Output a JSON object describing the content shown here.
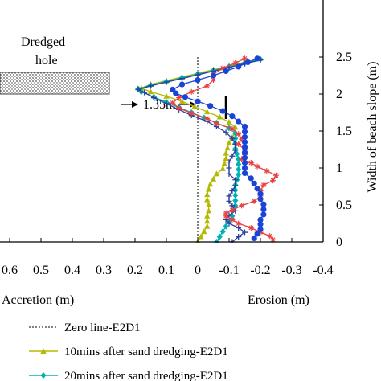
{
  "chart_data": {
    "type": "line",
    "xlabel_left": "Accretion (m)",
    "xlabel_right": "Erosion (m)",
    "ylabel": "Width of beach slope (m)",
    "xlim": [
      0.6,
      -0.4
    ],
    "ylim": [
      0,
      2.5
    ],
    "x_ticks": [
      "0.6",
      "0.5",
      "0.4",
      "0.3",
      "0.2",
      "0.1",
      "0",
      "-0.1",
      "-0.2",
      "-0.3",
      "-0.4"
    ],
    "x_tick_values": [
      0.6,
      0.5,
      0.4,
      0.3,
      0.2,
      0.1,
      0,
      -0.1,
      -0.2,
      -0.3,
      -0.4
    ],
    "y_ticks": [
      "0",
      "0.5",
      "1",
      "1.5",
      "2",
      "2.5"
    ],
    "y_tick_values": [
      0,
      0.5,
      1,
      1.5,
      2,
      2.5
    ],
    "annotations": {
      "hole_label_line1": "Dredged",
      "hole_label_line2": "hole",
      "distance_label": "1.35m"
    },
    "series": [
      {
        "name": "Zero line-E2D1",
        "color": "#000000",
        "style": "dotted",
        "marker": "none",
        "points": [
          [
            0,
            0
          ],
          [
            0,
            2.5
          ]
        ]
      },
      {
        "name": "10mins after sand dredging-E2D1",
        "color": "#b5b800",
        "style": "solid",
        "marker": "triangle",
        "points": [
          [
            0.0,
            0.0
          ],
          [
            -0.01,
            0.07
          ],
          [
            -0.02,
            0.14
          ],
          [
            -0.03,
            0.21
          ],
          [
            -0.03,
            0.28
          ],
          [
            -0.03,
            0.35
          ],
          [
            -0.035,
            0.42
          ],
          [
            -0.035,
            0.5
          ],
          [
            -0.03,
            0.57
          ],
          [
            -0.03,
            0.64
          ],
          [
            -0.035,
            0.71
          ],
          [
            -0.04,
            0.78
          ],
          [
            -0.05,
            0.85
          ],
          [
            -0.06,
            0.92
          ],
          [
            -0.08,
            0.99
          ],
          [
            -0.085,
            1.06
          ],
          [
            -0.09,
            1.13
          ],
          [
            -0.09,
            1.2
          ],
          [
            -0.095,
            1.27
          ],
          [
            -0.1,
            1.34
          ],
          [
            -0.11,
            1.41
          ],
          [
            -0.12,
            1.48
          ],
          [
            -0.12,
            1.55
          ],
          [
            -0.1,
            1.62
          ],
          [
            -0.07,
            1.69
          ],
          [
            -0.03,
            1.76
          ],
          [
            0.01,
            1.83
          ],
          [
            0.05,
            1.9
          ],
          [
            0.1,
            1.97
          ],
          [
            0.15,
            2.03
          ],
          [
            0.18,
            2.08
          ],
          [
            0.15,
            2.13
          ],
          [
            0.1,
            2.18
          ],
          [
            0.05,
            2.23
          ],
          [
            0.0,
            2.28
          ],
          [
            -0.05,
            2.33
          ],
          [
            -0.1,
            2.38
          ],
          [
            -0.15,
            2.43
          ]
        ]
      },
      {
        "name": "20mins after sand dredging-E2D1",
        "color": "#00b3b3",
        "style": "solid",
        "marker": "diamond",
        "points": [
          [
            -0.06,
            0.0
          ],
          [
            -0.07,
            0.07
          ],
          [
            -0.08,
            0.14
          ],
          [
            -0.09,
            0.21
          ],
          [
            -0.1,
            0.28
          ],
          [
            -0.11,
            0.35
          ],
          [
            -0.11,
            0.42
          ],
          [
            -0.12,
            0.49
          ],
          [
            -0.12,
            0.56
          ],
          [
            -0.12,
            0.63
          ],
          [
            -0.12,
            0.7
          ],
          [
            -0.12,
            0.77
          ],
          [
            -0.125,
            0.84
          ],
          [
            -0.13,
            0.91
          ],
          [
            -0.13,
            0.98
          ],
          [
            -0.13,
            1.05
          ],
          [
            -0.13,
            1.12
          ],
          [
            -0.125,
            1.19
          ],
          [
            -0.12,
            1.26
          ],
          [
            -0.12,
            1.33
          ],
          [
            -0.12,
            1.4
          ],
          [
            -0.12,
            1.47
          ],
          [
            -0.1,
            1.54
          ],
          [
            -0.06,
            1.61
          ],
          [
            -0.02,
            1.68
          ],
          [
            0.02,
            1.75
          ],
          [
            0.06,
            1.82
          ],
          [
            0.1,
            1.89
          ],
          [
            0.14,
            1.96
          ],
          [
            0.18,
            2.03
          ],
          [
            0.19,
            2.07
          ],
          [
            0.15,
            2.12
          ],
          [
            0.1,
            2.17
          ],
          [
            0.05,
            2.22
          ],
          [
            0.0,
            2.27
          ],
          [
            -0.05,
            2.32
          ],
          [
            -0.1,
            2.37
          ],
          [
            -0.15,
            2.42
          ],
          [
            -0.2,
            2.47
          ]
        ]
      },
      {
        "name": "",
        "color": "#2c3e9c",
        "style": "solid",
        "marker": "plus",
        "points": [
          [
            -0.11,
            0.0
          ],
          [
            -0.13,
            0.07
          ],
          [
            -0.15,
            0.13
          ],
          [
            -0.13,
            0.19
          ],
          [
            -0.1,
            0.25
          ],
          [
            -0.09,
            0.3
          ],
          [
            -0.1,
            0.36
          ],
          [
            -0.12,
            0.42
          ],
          [
            -0.11,
            0.49
          ],
          [
            -0.1,
            0.55
          ],
          [
            -0.1,
            0.62
          ],
          [
            -0.11,
            0.69
          ],
          [
            -0.12,
            0.76
          ],
          [
            -0.12,
            0.84
          ],
          [
            -0.1,
            0.92
          ],
          [
            -0.1,
            1.0
          ],
          [
            -0.1,
            1.08
          ],
          [
            -0.11,
            1.16
          ],
          [
            -0.12,
            1.24
          ],
          [
            -0.12,
            1.32
          ],
          [
            -0.11,
            1.4
          ],
          [
            -0.09,
            1.48
          ],
          [
            -0.06,
            1.56
          ],
          [
            -0.03,
            1.63
          ],
          [
            0.02,
            1.71
          ],
          [
            0.06,
            1.79
          ],
          [
            0.1,
            1.87
          ],
          [
            0.14,
            1.95
          ],
          [
            0.17,
            2.02
          ],
          [
            0.19,
            2.06
          ],
          [
            0.15,
            2.11
          ],
          [
            0.1,
            2.16
          ],
          [
            0.05,
            2.21
          ],
          [
            0.0,
            2.26
          ],
          [
            -0.05,
            2.31
          ],
          [
            -0.1,
            2.36
          ],
          [
            -0.15,
            2.41
          ],
          [
            -0.2,
            2.46
          ]
        ]
      },
      {
        "name": "",
        "color": "#e84040",
        "style": "solid",
        "marker": "star",
        "points": [
          [
            -0.24,
            0.03
          ],
          [
            -0.23,
            0.08
          ],
          [
            -0.2,
            0.13
          ],
          [
            -0.17,
            0.19
          ],
          [
            -0.13,
            0.25
          ],
          [
            -0.11,
            0.3
          ],
          [
            -0.09,
            0.35
          ],
          [
            -0.09,
            0.39
          ],
          [
            -0.11,
            0.43
          ],
          [
            -0.14,
            0.49
          ],
          [
            -0.18,
            0.55
          ],
          [
            -0.2,
            0.62
          ],
          [
            -0.2,
            0.69
          ],
          [
            -0.21,
            0.77
          ],
          [
            -0.24,
            0.83
          ],
          [
            -0.25,
            0.9
          ],
          [
            -0.22,
            0.96
          ],
          [
            -0.19,
            1.02
          ],
          [
            -0.17,
            1.07
          ],
          [
            -0.14,
            1.12
          ],
          [
            -0.15,
            1.18
          ],
          [
            -0.15,
            1.25
          ],
          [
            -0.13,
            1.32
          ],
          [
            -0.14,
            1.39
          ],
          [
            -0.13,
            1.46
          ],
          [
            -0.11,
            1.53
          ],
          [
            -0.06,
            1.6
          ],
          [
            -0.03,
            1.67
          ],
          [
            0.02,
            1.74
          ],
          [
            0.06,
            1.81
          ],
          [
            0.08,
            1.88
          ],
          [
            0.06,
            1.95
          ],
          [
            0.02,
            2.03
          ],
          [
            -0.03,
            2.11
          ],
          [
            -0.05,
            2.19
          ],
          [
            -0.05,
            2.27
          ],
          [
            -0.08,
            2.35
          ],
          [
            -0.12,
            2.42
          ],
          [
            -0.15,
            2.48
          ]
        ]
      },
      {
        "name": "",
        "color": "#1a44d6",
        "style": "solid",
        "marker": "circle",
        "points": [
          [
            -0.18,
            0.05
          ],
          [
            -0.19,
            0.11
          ],
          [
            -0.2,
            0.17
          ],
          [
            -0.2,
            0.24
          ],
          [
            -0.2,
            0.3
          ],
          [
            -0.21,
            0.37
          ],
          [
            -0.21,
            0.44
          ],
          [
            -0.21,
            0.51
          ],
          [
            -0.2,
            0.58
          ],
          [
            -0.2,
            0.65
          ],
          [
            -0.19,
            0.72
          ],
          [
            -0.18,
            0.79
          ],
          [
            -0.17,
            0.86
          ],
          [
            -0.15,
            0.93
          ],
          [
            -0.15,
            1.0
          ],
          [
            -0.15,
            1.07
          ],
          [
            -0.15,
            1.14
          ],
          [
            -0.15,
            1.21
          ],
          [
            -0.15,
            1.28
          ],
          [
            -0.15,
            1.35
          ],
          [
            -0.15,
            1.42
          ],
          [
            -0.15,
            1.49
          ],
          [
            -0.15,
            1.56
          ],
          [
            -0.13,
            1.63
          ],
          [
            -0.11,
            1.7
          ],
          [
            -0.08,
            1.77
          ],
          [
            -0.04,
            1.84
          ],
          [
            0.0,
            1.9
          ],
          [
            0.04,
            1.96
          ],
          [
            0.07,
            2.01
          ],
          [
            0.08,
            2.06
          ],
          [
            0.05,
            2.13
          ],
          [
            0.0,
            2.19
          ],
          [
            -0.05,
            2.25
          ],
          [
            -0.09,
            2.31
          ],
          [
            -0.13,
            2.37
          ],
          [
            -0.16,
            2.43
          ],
          [
            -0.19,
            2.48
          ]
        ]
      }
    ],
    "legend": {
      "placement": "bottom-left",
      "entries": [
        {
          "label": "Zero line-E2D1",
          "marker": "none",
          "style": "dotted",
          "color": "#000000"
        },
        {
          "label": "10mins after sand dredging-E2D1",
          "marker": "triangle",
          "style": "solid",
          "color": "#b5b800"
        },
        {
          "label": "20mins after sand dredging-E2D1",
          "marker": "diamond",
          "style": "solid",
          "color": "#00b3b3"
        }
      ]
    }
  }
}
